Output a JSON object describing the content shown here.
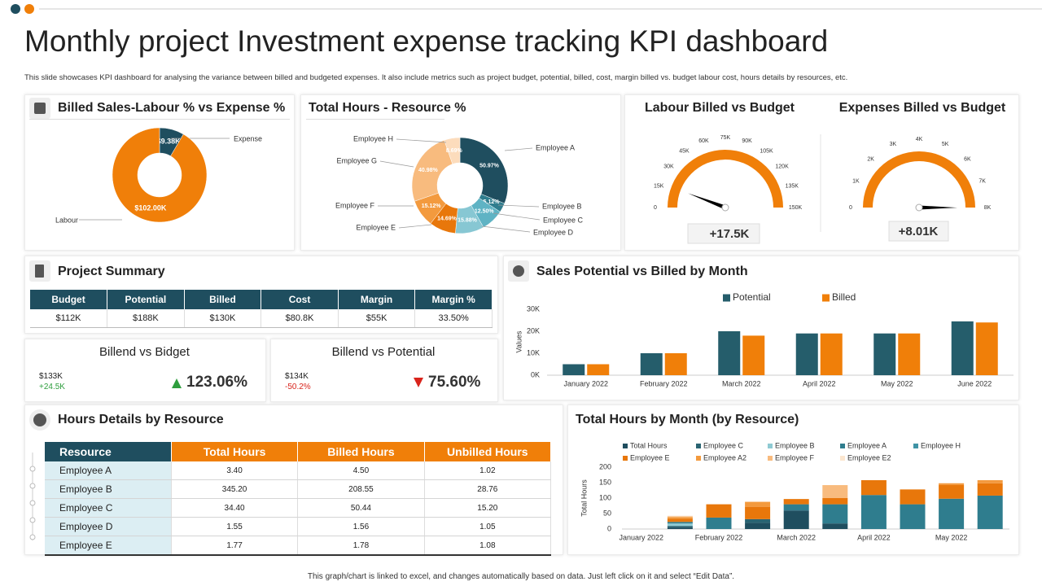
{
  "header": {
    "title": "Monthly project Investment expense tracking KPI dashboard",
    "subtitle": "This slide showcases KPI dashboard for analysing the variance between billed and budgeted expenses. It also include metrics such as project budget, potential, billed, cost, margin billed vs. budget labour cost, hours details by resources, etc."
  },
  "chart_data": [
    {
      "type": "donut",
      "title": "Billed Sales-Labour % vs Expense %",
      "categories": [
        "Expense",
        "Labour"
      ],
      "values": [
        9380,
        102000
      ],
      "value_labels": [
        "$9.38K",
        "$102.00K"
      ],
      "colors": [
        "#1f4e5f",
        "#f07f09"
      ]
    },
    {
      "type": "donut",
      "title": "Total Hours - Resource %",
      "categories": [
        "Employee A",
        "Employee B",
        "Employee C",
        "Employee D",
        "Employee E",
        "Employee F",
        "Employee G",
        "Employee H"
      ],
      "values": [
        50.97,
        5.12,
        12.5,
        15.88,
        14.69,
        15.12,
        40.98,
        8.69
      ],
      "value_labels": [
        "50.97%",
        "5.12%",
        "12.50%",
        "15.88%",
        "14.69%",
        "15.12%",
        "40.98%",
        "8.69%"
      ],
      "colors": [
        "#1f4e5f",
        "#2f7d8e",
        "#5fb3c4",
        "#87c7d3",
        "#e8770b",
        "#f39a3e",
        "#f8bb7e",
        "#fcdcbc"
      ]
    },
    {
      "type": "gauge",
      "title": "Labour Billed vs Budget",
      "value": 17500,
      "value_label": "+17.5K",
      "color": "#f07f09",
      "xlim": [
        0,
        150000
      ],
      "xticks": [
        0,
        {
          "value": 15000,
          "label": "15K"
        },
        {
          "value": 30000,
          "label": "30K"
        },
        {
          "value": 45000,
          "label": "45K"
        },
        {
          "value": 60000,
          "label": "60K"
        },
        {
          "value": 75000,
          "label": "75K"
        },
        {
          "value": 90000,
          "label": "90K"
        },
        {
          "value": 105000,
          "label": "105K"
        },
        {
          "value": 120000,
          "label": "120K"
        },
        {
          "value": 135000,
          "label": "135K"
        },
        {
          "value": 150000,
          "label": "150K"
        }
      ]
    },
    {
      "type": "gauge",
      "title": "Expenses Billed vs Budget",
      "value": 8010,
      "value_label": "+8.01K",
      "color": "#f07f09",
      "xlim": [
        0,
        8000
      ],
      "xticks": [
        0,
        {
          "value": 1000,
          "label": "1K"
        },
        {
          "value": 2000,
          "label": "2K"
        },
        {
          "value": 3000,
          "label": "3K"
        },
        {
          "value": 4000,
          "label": "4K"
        },
        {
          "value": 5000,
          "label": "5K"
        },
        {
          "value": 6000,
          "label": "6K"
        },
        {
          "value": 7000,
          "label": "7K"
        },
        {
          "value": 8000,
          "label": "8K"
        }
      ]
    },
    {
      "type": "bar",
      "title": "Sales Potential vs Billed by Month",
      "y_label": "Values",
      "categories": [
        "January 2022",
        "February 2022",
        "March 2022",
        "April 2022",
        "May 2022",
        "June 2022"
      ],
      "series": [
        {
          "name": "Potential",
          "color": "#255d6b",
          "values": [
            5000,
            10000,
            20000,
            19000,
            19000,
            24500
          ]
        },
        {
          "name": "Billed",
          "color": "#f07f09",
          "values": [
            5000,
            10000,
            18000,
            19000,
            19000,
            24000
          ]
        }
      ],
      "ylim": [
        0,
        30000
      ],
      "yticks": [
        {
          "value": 0,
          "label": "0K"
        },
        {
          "value": 10000,
          "label": "10K"
        },
        {
          "value": 20000,
          "label": "20K"
        },
        {
          "value": 30000,
          "label": "30K"
        }
      ]
    },
    {
      "type": "bar",
      "stacked": true,
      "title": "Total Hours by Month (by Resource)",
      "y_label": "Total Hours",
      "categories": [
        "January 2022",
        null,
        "February 2022",
        null,
        "March 2022",
        null,
        "April 2022",
        null,
        "May 2022",
        null
      ],
      "series": [
        {
          "name": "Total Hours",
          "color": "#1f4e5f",
          "values": [
            null,
            5,
            null,
            20,
            60,
            18,
            null,
            null,
            null,
            null
          ]
        },
        {
          "name": "Employee C",
          "color": "#2a6472",
          "values": [
            null,
            5,
            null,
            12,
            null,
            null,
            null,
            null,
            null,
            null
          ]
        },
        {
          "name": "Employee B",
          "color": "#8fcad3",
          "values": [
            null,
            8,
            null,
            null,
            null,
            null,
            null,
            null,
            null,
            null
          ]
        },
        {
          "name": "Employee A",
          "color": "#2f7d8e",
          "values": [
            null,
            5,
            37,
            null,
            20,
            62,
            110,
            80,
            98,
            108
          ]
        },
        {
          "name": "Employee H",
          "color": "#3f93a5",
          "values": [
            null,
            null,
            null,
            null,
            null,
            null,
            null,
            null,
            null,
            null
          ]
        },
        {
          "name": "Employee E",
          "color": "#e8770b",
          "values": [
            null,
            10,
            43,
            40,
            17,
            20,
            48,
            48,
            45,
            40
          ]
        },
        {
          "name": "Employee A2",
          "color": "#f39a3e",
          "values": [
            null,
            5,
            null,
            16,
            null,
            null,
            null,
            null,
            5,
            10
          ]
        },
        {
          "name": "Employee F",
          "color": "#f8bb7e",
          "values": [
            null,
            3,
            null,
            null,
            null,
            42,
            null,
            null,
            null,
            null
          ]
        },
        {
          "name": "Employee E2",
          "color": "#fce6cf",
          "values": [
            null,
            2,
            null,
            null,
            null,
            null,
            null,
            null,
            null,
            null
          ]
        }
      ],
      "ylim": [
        0,
        200
      ],
      "yticks": [
        0,
        50,
        100,
        150,
        200
      ]
    }
  ],
  "project_summary": {
    "title": "Project Summary",
    "columns": [
      "Budget",
      "Potential",
      "Billed",
      "Cost",
      "Margin",
      "Margin %"
    ],
    "rows": [
      [
        "$112K",
        "$188K",
        "$130K",
        "$80.8K",
        "$55K",
        "33.50%"
      ]
    ]
  },
  "kpis": [
    {
      "title": "Billend vs Bidget",
      "amount": "$133K",
      "change": "+24.5K",
      "ratio": "123.06%"
    },
    {
      "title": "Billend vs Potential",
      "amount": "$134K",
      "change": "-50.2%",
      "ratio": "75.60%"
    }
  ],
  "hours_details": {
    "title": "Hours Details by Resource",
    "columns": [
      "Resource",
      "Total Hours",
      "Billed Hours",
      "Unbilled Hours"
    ],
    "rows": [
      [
        "Employee A",
        "3.40",
        "4.50",
        "1.02"
      ],
      [
        "Employee B",
        "345.20",
        "208.55",
        "28.76"
      ],
      [
        "Employee C",
        "34.40",
        "50.44",
        "15.20"
      ],
      [
        "Employee D",
        "1.55",
        "1.56",
        "1.05"
      ],
      [
        "Employee E",
        "1.77",
        "1.78",
        "1.08"
      ]
    ]
  },
  "footer": "This graph/chart is linked to excel, and changes automatically based on data. Just left click on it and select “Edit Data”."
}
